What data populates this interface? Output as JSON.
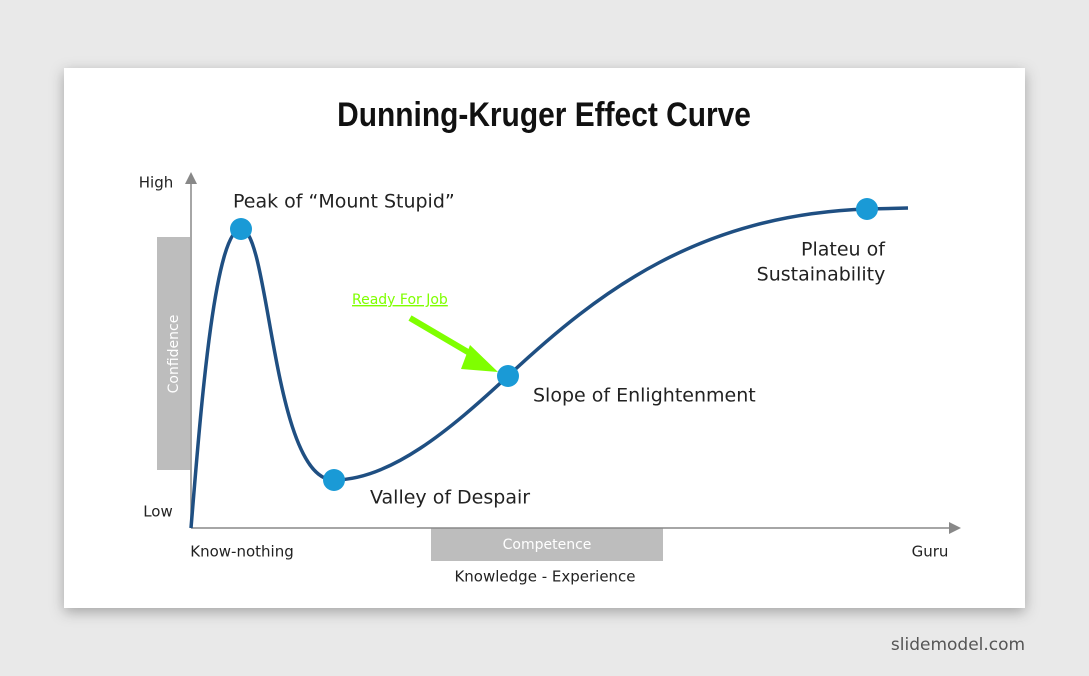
{
  "header": {
    "title": "Dunning-Kruger Effect Curve"
  },
  "y_axis": {
    "high": "High",
    "low": "Low",
    "label": "Confidence"
  },
  "x_axis": {
    "start": "Know-nothing",
    "end": "Guru",
    "band": "Competence",
    "label": "Knowledge - Experience"
  },
  "points": [
    {
      "label": "Peak of “Mount Stupid”"
    },
    {
      "label": "Valley of Despair"
    },
    {
      "label": "Slope of Enlightenment"
    },
    {
      "label": [
        "Plateu of",
        "Sustainability"
      ]
    }
  ],
  "annotation": "Ready For Job",
  "footer": "slidemodel.com"
}
